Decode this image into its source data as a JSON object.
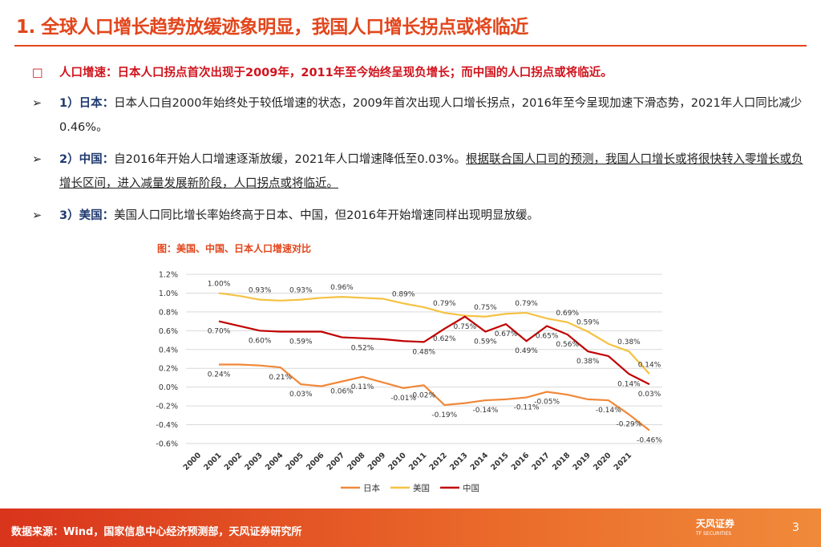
{
  "header": {
    "title": "1. 全球人口增长趋势放缓迹象明显，我国人口增长拐点或将临近"
  },
  "bullets": [
    {
      "text": "人口增速：日本人口拐点首次出现于2009年，2011年至今始终呈现负增长；而中国的人口拐点或将临近。"
    }
  ],
  "items": [
    {
      "label": "1）日本：",
      "text": "日本人口自2000年始终处于较低增速的状态，2009年首次出现人口增长拐点，2016年至今呈现加速下滑态势，2021年人口同比减少0.46%。"
    },
    {
      "label": "2）中国：",
      "text": "自2016年开始人口增速逐渐放缓，2021年人口增速降低至0.03%。",
      "note": "根据联合国人口司的预测，我国人口增长或将很快转入零增长或负增长区间，进入减量发展新阶段，人口拐点或将临近。"
    },
    {
      "label": "3）美国：",
      "text": "美国人口同比增长率始终高于日本、中国，但2016年开始增速同样出现明显放缓。"
    }
  ],
  "chart_data": {
    "type": "line",
    "title": "图：美国、中国、日本人口增速对比",
    "categories": [
      "2000",
      "2001",
      "2002",
      "2003",
      "2004",
      "2005",
      "2006",
      "2007",
      "2008",
      "2009",
      "2010",
      "2011",
      "2012",
      "2013",
      "2014",
      "2015",
      "2016",
      "2017",
      "2018",
      "2019",
      "2020",
      "2021"
    ],
    "series": [
      {
        "name": "日本",
        "color": "#f0883a",
        "values": [
          0.24,
          0.24,
          0.23,
          0.21,
          0.03,
          0.01,
          0.06,
          0.11,
          0.05,
          -0.01,
          0.02,
          -0.19,
          -0.17,
          -0.14,
          -0.13,
          -0.11,
          -0.05,
          -0.08,
          -0.13,
          -0.14,
          -0.29,
          -0.46
        ],
        "value_labels": [
          "0.24%",
          null,
          null,
          "0.21%",
          "0.03%",
          null,
          "0.06%",
          "0.11%",
          null,
          "-0.01%",
          "0.02%",
          "-0.19%",
          null,
          "-0.14%",
          null,
          "-0.11%",
          "-0.05%",
          null,
          null,
          "-0.14%",
          "-0.29%",
          "-0.46%"
        ]
      },
      {
        "name": "美国",
        "color": "#f5c242",
        "values": [
          1.0,
          0.97,
          0.93,
          0.92,
          0.93,
          0.95,
          0.96,
          0.95,
          0.94,
          0.89,
          0.85,
          0.79,
          0.76,
          0.75,
          0.78,
          0.79,
          0.73,
          0.69,
          0.59,
          0.46,
          0.38,
          0.14
        ],
        "value_labels": [
          "1.00%",
          null,
          "0.93%",
          null,
          "0.93%",
          null,
          "0.96%",
          null,
          null,
          "0.89%",
          null,
          "0.79%",
          null,
          "0.75%",
          null,
          "0.79%",
          null,
          "0.69%",
          "0.59%",
          null,
          "0.38%",
          "0.14%"
        ]
      },
      {
        "name": "中国",
        "color": "#c00000",
        "values": [
          0.7,
          0.65,
          0.6,
          0.59,
          0.59,
          0.59,
          0.53,
          0.52,
          0.51,
          0.49,
          0.48,
          0.62,
          0.75,
          0.59,
          0.67,
          0.49,
          0.65,
          0.56,
          0.38,
          0.33,
          0.14,
          0.03
        ],
        "value_labels": [
          "0.70%",
          null,
          "0.60%",
          null,
          "0.59%",
          null,
          null,
          "0.52%",
          null,
          null,
          "0.48%",
          "0.62%",
          "0.75%",
          "0.59%",
          "0.67%",
          "0.49%",
          "0.65%",
          "0.56%",
          "0.38%",
          null,
          "0.14%",
          "0.03%"
        ]
      }
    ],
    "ylim": [
      -0.6,
      1.2
    ],
    "yticks": [
      {
        "value": -0.6,
        "label": "-0.6%"
      },
      {
        "value": -0.4,
        "label": "-0.4%"
      },
      {
        "value": -0.2,
        "label": "-0.2%"
      },
      {
        "value": 0,
        "label": "0.0%"
      },
      {
        "value": 0.2,
        "label": "0.2%"
      },
      {
        "value": 0.4,
        "label": "0.4%"
      },
      {
        "value": 0.6,
        "label": "0.6%"
      },
      {
        "value": 0.8,
        "label": "0.8%"
      },
      {
        "value": 1.0,
        "label": "1.0%"
      },
      {
        "value": 1.2,
        "label": "1.2%"
      }
    ],
    "grid": true,
    "legend": "bottom"
  },
  "footer": {
    "source": "数据来源：Wind，国家信息中心经济预测部，天风证券研究所",
    "logo": "天风证券",
    "logo_sub": "TF SECURITIES",
    "page": "3"
  }
}
